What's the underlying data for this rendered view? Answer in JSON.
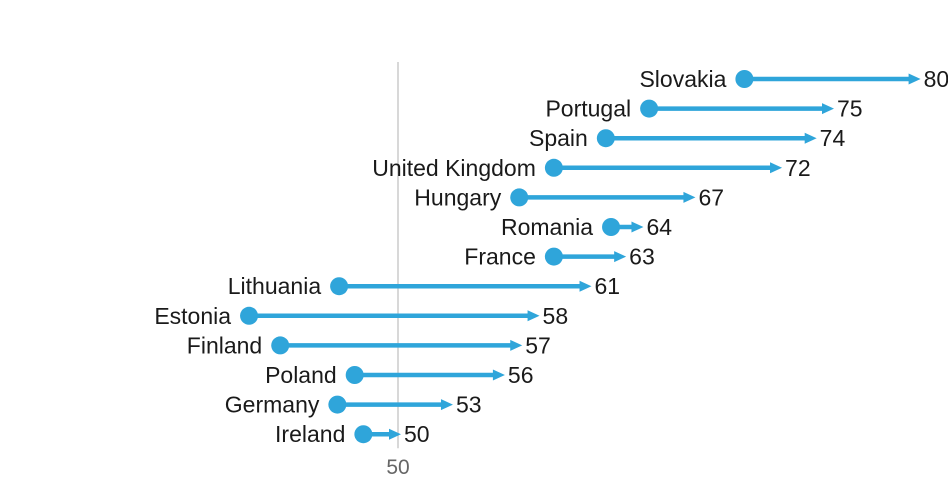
{
  "chart_data": {
    "type": "dumbbell",
    "title": "",
    "xlabel": "",
    "ylabel": "",
    "xlim": [
      30,
      81.7
    ],
    "reference_line": 50,
    "x_ticks": [
      50
    ],
    "x_tick_labels": [
      "50"
    ],
    "grid": false,
    "legend": "none",
    "colors": {
      "series": "#2FA5DA",
      "reference": "#cccccc",
      "text": "#1a1a1a",
      "tick": "#666666"
    },
    "rows": [
      {
        "category": "Slovakia",
        "start": 70,
        "end": 80,
        "end_label": "80"
      },
      {
        "category": "Portugal",
        "start": 64.5,
        "end": 75,
        "end_label": "75"
      },
      {
        "category": "Spain",
        "start": 62,
        "end": 74,
        "end_label": "74"
      },
      {
        "category": "United Kingdom",
        "start": 59,
        "end": 72,
        "end_label": "72"
      },
      {
        "category": "Hungary",
        "start": 57,
        "end": 67,
        "end_label": "67"
      },
      {
        "category": "Romania",
        "start": 62.3,
        "end": 64,
        "end_label": "64"
      },
      {
        "category": "France",
        "start": 59,
        "end": 63,
        "end_label": "63"
      },
      {
        "category": "Lithuania",
        "start": 46.6,
        "end": 61,
        "end_label": "61"
      },
      {
        "category": "Estonia",
        "start": 41.4,
        "end": 58,
        "end_label": "58"
      },
      {
        "category": "Finland",
        "start": 43.2,
        "end": 57,
        "end_label": "57"
      },
      {
        "category": "Poland",
        "start": 47.5,
        "end": 56,
        "end_label": "56"
      },
      {
        "category": "Germany",
        "start": 46.5,
        "end": 53,
        "end_label": "53"
      },
      {
        "category": "Ireland",
        "start": 48,
        "end": 50,
        "end_label": "50"
      }
    ]
  }
}
